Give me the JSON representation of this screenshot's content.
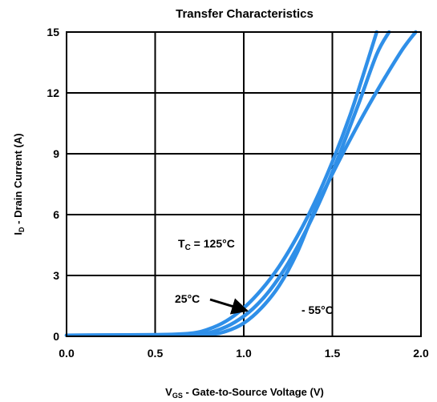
{
  "chart_data": {
    "type": "line",
    "title": "Transfer Characteristics",
    "xlabel": {
      "main": "V",
      "sub": "GS",
      "rest": " - Gate-to-Source Voltage (V)"
    },
    "ylabel": {
      "main": "I",
      "sub": "D",
      "rest": " - Drain Current (A)"
    },
    "xlim": [
      0.0,
      2.0
    ],
    "ylim": [
      0,
      15
    ],
    "xticks": [
      0.0,
      0.5,
      1.0,
      1.5,
      2.0
    ],
    "xtick_labels": [
      "0.0",
      "0.5",
      "1.0",
      "1.5",
      "2.0"
    ],
    "yticks": [
      0,
      3,
      6,
      9,
      12,
      15
    ],
    "ytick_labels": [
      "0",
      "3",
      "6",
      "9",
      "12",
      "15"
    ],
    "grid": true,
    "series_color": "#2f8fe8",
    "series": [
      {
        "x": [
          0.0,
          0.5,
          0.7,
          0.8,
          0.9,
          1.0,
          1.1,
          1.2,
          1.3,
          1.4,
          1.5,
          1.6,
          1.7,
          1.75
        ],
        "y": [
          0.05,
          0.08,
          0.15,
          0.35,
          0.75,
          1.4,
          2.3,
          3.45,
          4.9,
          6.6,
          8.6,
          10.9,
          13.6,
          15.0
        ]
      },
      {
        "x": [
          0.0,
          0.5,
          0.75,
          0.85,
          0.95,
          1.05,
          1.15,
          1.25,
          1.35,
          1.45,
          1.55,
          1.65,
          1.75,
          1.82
        ],
        "y": [
          0.05,
          0.07,
          0.12,
          0.3,
          0.7,
          1.35,
          2.3,
          3.6,
          5.2,
          7.05,
          9.2,
          11.5,
          13.9,
          15.0
        ]
      },
      {
        "x": [
          0.0,
          0.5,
          0.8,
          0.9,
          1.0,
          1.1,
          1.2,
          1.3,
          1.4,
          1.5,
          1.6,
          1.7,
          1.8,
          1.9,
          1.97
        ],
        "y": [
          0.05,
          0.06,
          0.1,
          0.25,
          0.65,
          1.4,
          2.5,
          4.1,
          6.2,
          8.0,
          9.7,
          11.3,
          12.8,
          14.2,
          15.0
        ]
      }
    ],
    "annotations": [
      {
        "id": "tc",
        "main": "T",
        "sub": "C",
        "rest": " = 125°C"
      },
      {
        "id": "t25",
        "text": "25°C",
        "arrow_to": [
          1.0,
          1.4
        ]
      },
      {
        "id": "tm55",
        "text": "- 55°C"
      }
    ]
  }
}
